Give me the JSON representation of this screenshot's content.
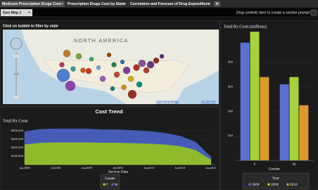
{
  "tabs": [
    {
      "label": "Medicare Prescription Drugs Cost"
    },
    {
      "label": "Prescription Drugs Cost by State"
    },
    {
      "label": "Correlation and Forecast of Drug Expenditure"
    }
  ],
  "add_tab": "+",
  "section_tab": "Geo Map 1",
  "prompt_hint": "Drop controls here to create a section prompt",
  "map": {
    "instruction": "Click on bubble to filter by state",
    "region_label": "NORTH AMERICA",
    "attribution": [
      "OpenStreetMap",
      "CC-BY-SA"
    ]
  },
  "chart_data": [
    {
      "type": "area",
      "title": "Cost Trend",
      "y_label": "Total Rx Costs",
      "x_label": "Service Date",
      "categories": [
        "Jan2008",
        null,
        "Jul2008",
        null,
        "Jan2009",
        null,
        "Jul2009",
        null,
        "Jan2010",
        null,
        "Jul2010",
        null,
        "Jan2011"
      ],
      "series": [
        {
          "name": "F",
          "color": "#9ccc2e",
          "values": [
            480000,
            520000,
            530000,
            530000,
            530000,
            520000,
            520000,
            510000,
            500000,
            480000,
            440000,
            350000,
            120000
          ]
        },
        {
          "name": "M",
          "color": "#4a63c8",
          "values": [
            300000,
            320000,
            320000,
            320000,
            320000,
            310000,
            310000,
            300000,
            290000,
            270000,
            240000,
            190000,
            60000
          ]
        }
      ],
      "stacked": true,
      "ylim": [
        0,
        900000
      ],
      "yticks": [
        {
          "value": 200000,
          "label": "$200,000"
        },
        {
          "value": 400000,
          "label": "$400,000"
        },
        {
          "value": 600000,
          "label": "$600,000"
        },
        {
          "value": 800000,
          "label": "$800,000"
        }
      ],
      "grid": true,
      "legend_title": "Gender"
    },
    {
      "type": "bar",
      "y_label": "Total Rx Costs (millions)",
      "x_label": "Gender",
      "categories": [
        "F",
        "M"
      ],
      "series": [
        {
          "name": "2008",
          "color": "#5a72d6",
          "values": [
            96,
            62
          ]
        },
        {
          "name": "2009",
          "color": "#a6d13a",
          "values": [
            105,
            68
          ]
        },
        {
          "name": "2010",
          "color": "#dc9a2c",
          "values": [
            68,
            45
          ]
        }
      ],
      "ylim": [
        0,
        105
      ],
      "yticks": [
        {
          "value": 20,
          "label": "$20"
        },
        {
          "value": 40,
          "label": "$40"
        },
        {
          "value": 60,
          "label": "$60"
        },
        {
          "value": 80,
          "label": "$80"
        }
      ],
      "grid": true,
      "legend_title": "Year"
    }
  ]
}
